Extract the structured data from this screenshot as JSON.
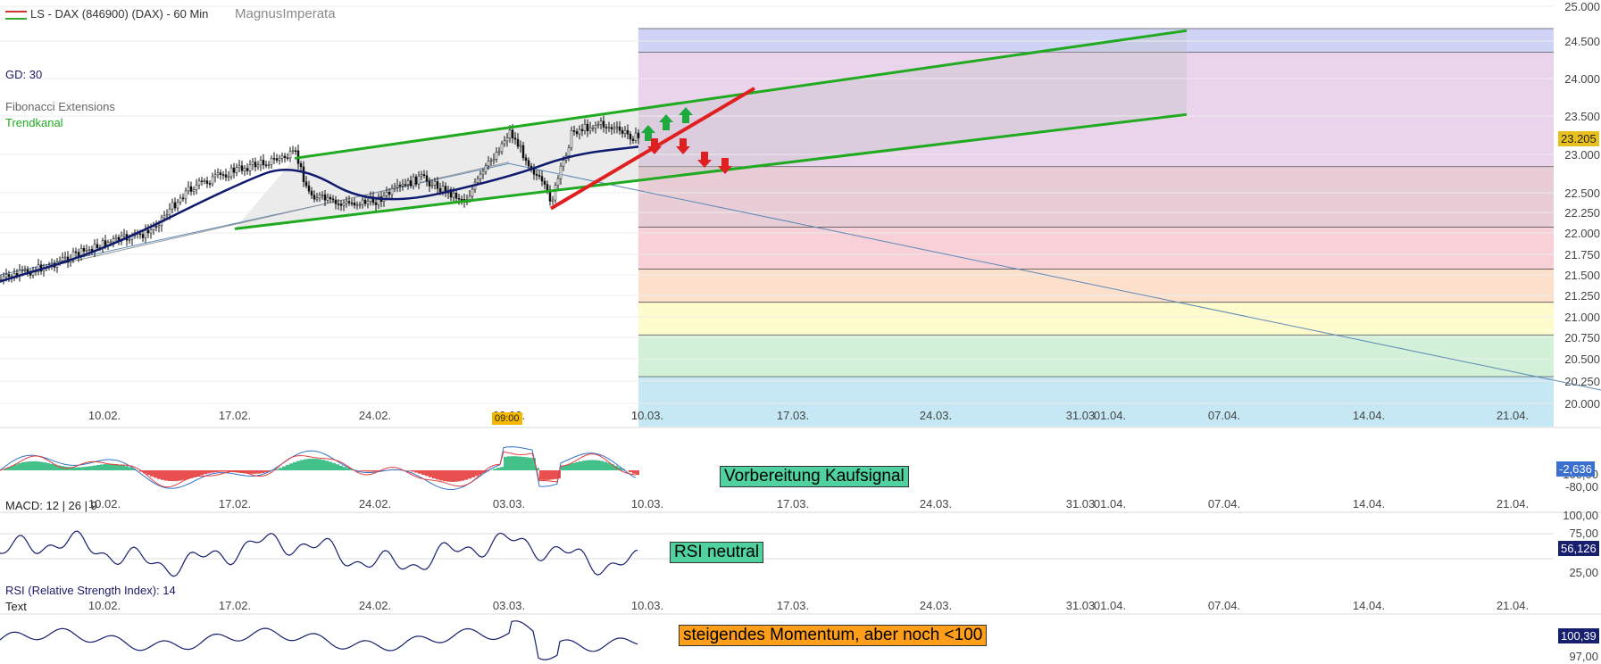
{
  "header": {
    "instrument": "LS - DAX (846900) (DAX) - 60 Min",
    "brand": "MagnusImperata"
  },
  "legend": {
    "sma": "GD: 30",
    "fib": "Fibonacci Extensions",
    "channel": "Trendkanal"
  },
  "colors": {
    "candle": "#111111",
    "sma": "#0e1a6e",
    "channel": "#1faa1f",
    "support": "#e02020",
    "projection": "#5b87b5",
    "macd_line": "#3070c8",
    "signal_line": "#e04040",
    "hist_pos": "#44c08a",
    "hist_neg": "#e85050",
    "price_tag": "#e8c020"
  },
  "annotations": {
    "macd_note": "Vorbereitung Kaufsignal",
    "rsi_note": "RSI neutral",
    "mom_note": "steigendes Momentum, aber noch <100"
  },
  "indicators": {
    "macd_label": "MACD: 12 | 26 | 9",
    "rsi_label": "RSI (Relative Strength Index): 14",
    "text_label": "Text",
    "time_marker": "09:00",
    "macd_value": "-2,636",
    "rsi_value": "56,126",
    "mom_value": "100,39"
  },
  "chart_data": [
    {
      "type": "candlestick",
      "title": "LS - DAX (846900) (DAX) - 60 Min",
      "x_ticks": [
        "10.02.",
        "17.02.",
        "24.02.",
        "03.03.",
        "10.03.",
        "17.03.",
        "24.03.",
        "31.03",
        "01.04.",
        "07.04.",
        "14.04.",
        "21.04."
      ],
      "y_ticks": [
        "25.000",
        "24.500",
        "24.000",
        "23.500",
        "23.000",
        "22.500",
        "22.250",
        "22.000",
        "21.750",
        "21.500",
        "21.250",
        "21.000",
        "20.750",
        "20.500",
        "20.250",
        "20.000"
      ],
      "ylim": [
        20000,
        25000
      ],
      "last_price": "23.205",
      "price_path": [
        {
          "x": "05.02.",
          "y": 21440
        },
        {
          "x": "07.02.",
          "y": 21620
        },
        {
          "x": "10.02.",
          "y": 21880
        },
        {
          "x": "12.02.",
          "y": 22000
        },
        {
          "x": "14.02.",
          "y": 22550
        },
        {
          "x": "17.02.",
          "y": 22800
        },
        {
          "x": "19.02.",
          "y": 23000
        },
        {
          "x": "20.02.",
          "y": 22500
        },
        {
          "x": "21.02.",
          "y": 22350
        },
        {
          "x": "24.02.",
          "y": 22400
        },
        {
          "x": "26.02.",
          "y": 22700
        },
        {
          "x": "28.02.",
          "y": 22400
        },
        {
          "x": "03.03.",
          "y": 23300
        },
        {
          "x": "04.03.",
          "y": 22400
        },
        {
          "x": "06.03.",
          "y": 23300
        },
        {
          "x": "07.03.",
          "y": 23400
        },
        {
          "x": "10.03.",
          "y": 23205
        }
      ],
      "sma_30_path": [
        {
          "x": "05.02.",
          "y": 21420
        },
        {
          "x": "10.02.",
          "y": 21800
        },
        {
          "x": "17.02.",
          "y": 22600
        },
        {
          "x": "19.02.",
          "y": 22900
        },
        {
          "x": "24.02.",
          "y": 22300
        },
        {
          "x": "03.03.",
          "y": 22700
        },
        {
          "x": "06.03.",
          "y": 23000
        },
        {
          "x": "10.03.",
          "y": 23100
        }
      ],
      "fibonacci_levels": [
        25000,
        24350,
        22840,
        22070,
        21570,
        21170,
        20780,
        20300,
        19850
      ],
      "trend_channel": {
        "upper": [
          {
            "x": "19.02.",
            "y": 22950
          },
          {
            "x": "04.04.",
            "y": 24650
          }
        ],
        "lower": [
          {
            "x": "17.02.",
            "y": 22050
          },
          {
            "x": "04.04.",
            "y": 23520
          }
        ]
      },
      "support_line": [
        {
          "x": "04.03.",
          "y": 22300
        },
        {
          "x": "14.03.",
          "y": 23870
        }
      ],
      "projection_line": [
        {
          "x": "05.02.",
          "y": 21500
        },
        {
          "x": "03.03.",
          "y": 22880
        },
        {
          "x": "24.04.",
          "y": 20150
        }
      ]
    },
    {
      "type": "line",
      "name": "MACD: 12 | 26 | 9",
      "y_ticks": [
        "100,00",
        "-80,00"
      ],
      "last_value": "-2,636"
    },
    {
      "type": "line",
      "name": "RSI (Relative Strength Index): 14",
      "y_ticks": [
        "100,00",
        "75,00",
        "25,00"
      ],
      "last_value": "56,126"
    },
    {
      "type": "line",
      "name": "Text",
      "y_ticks": [
        "97,00"
      ],
      "last_value": "100,39"
    }
  ]
}
